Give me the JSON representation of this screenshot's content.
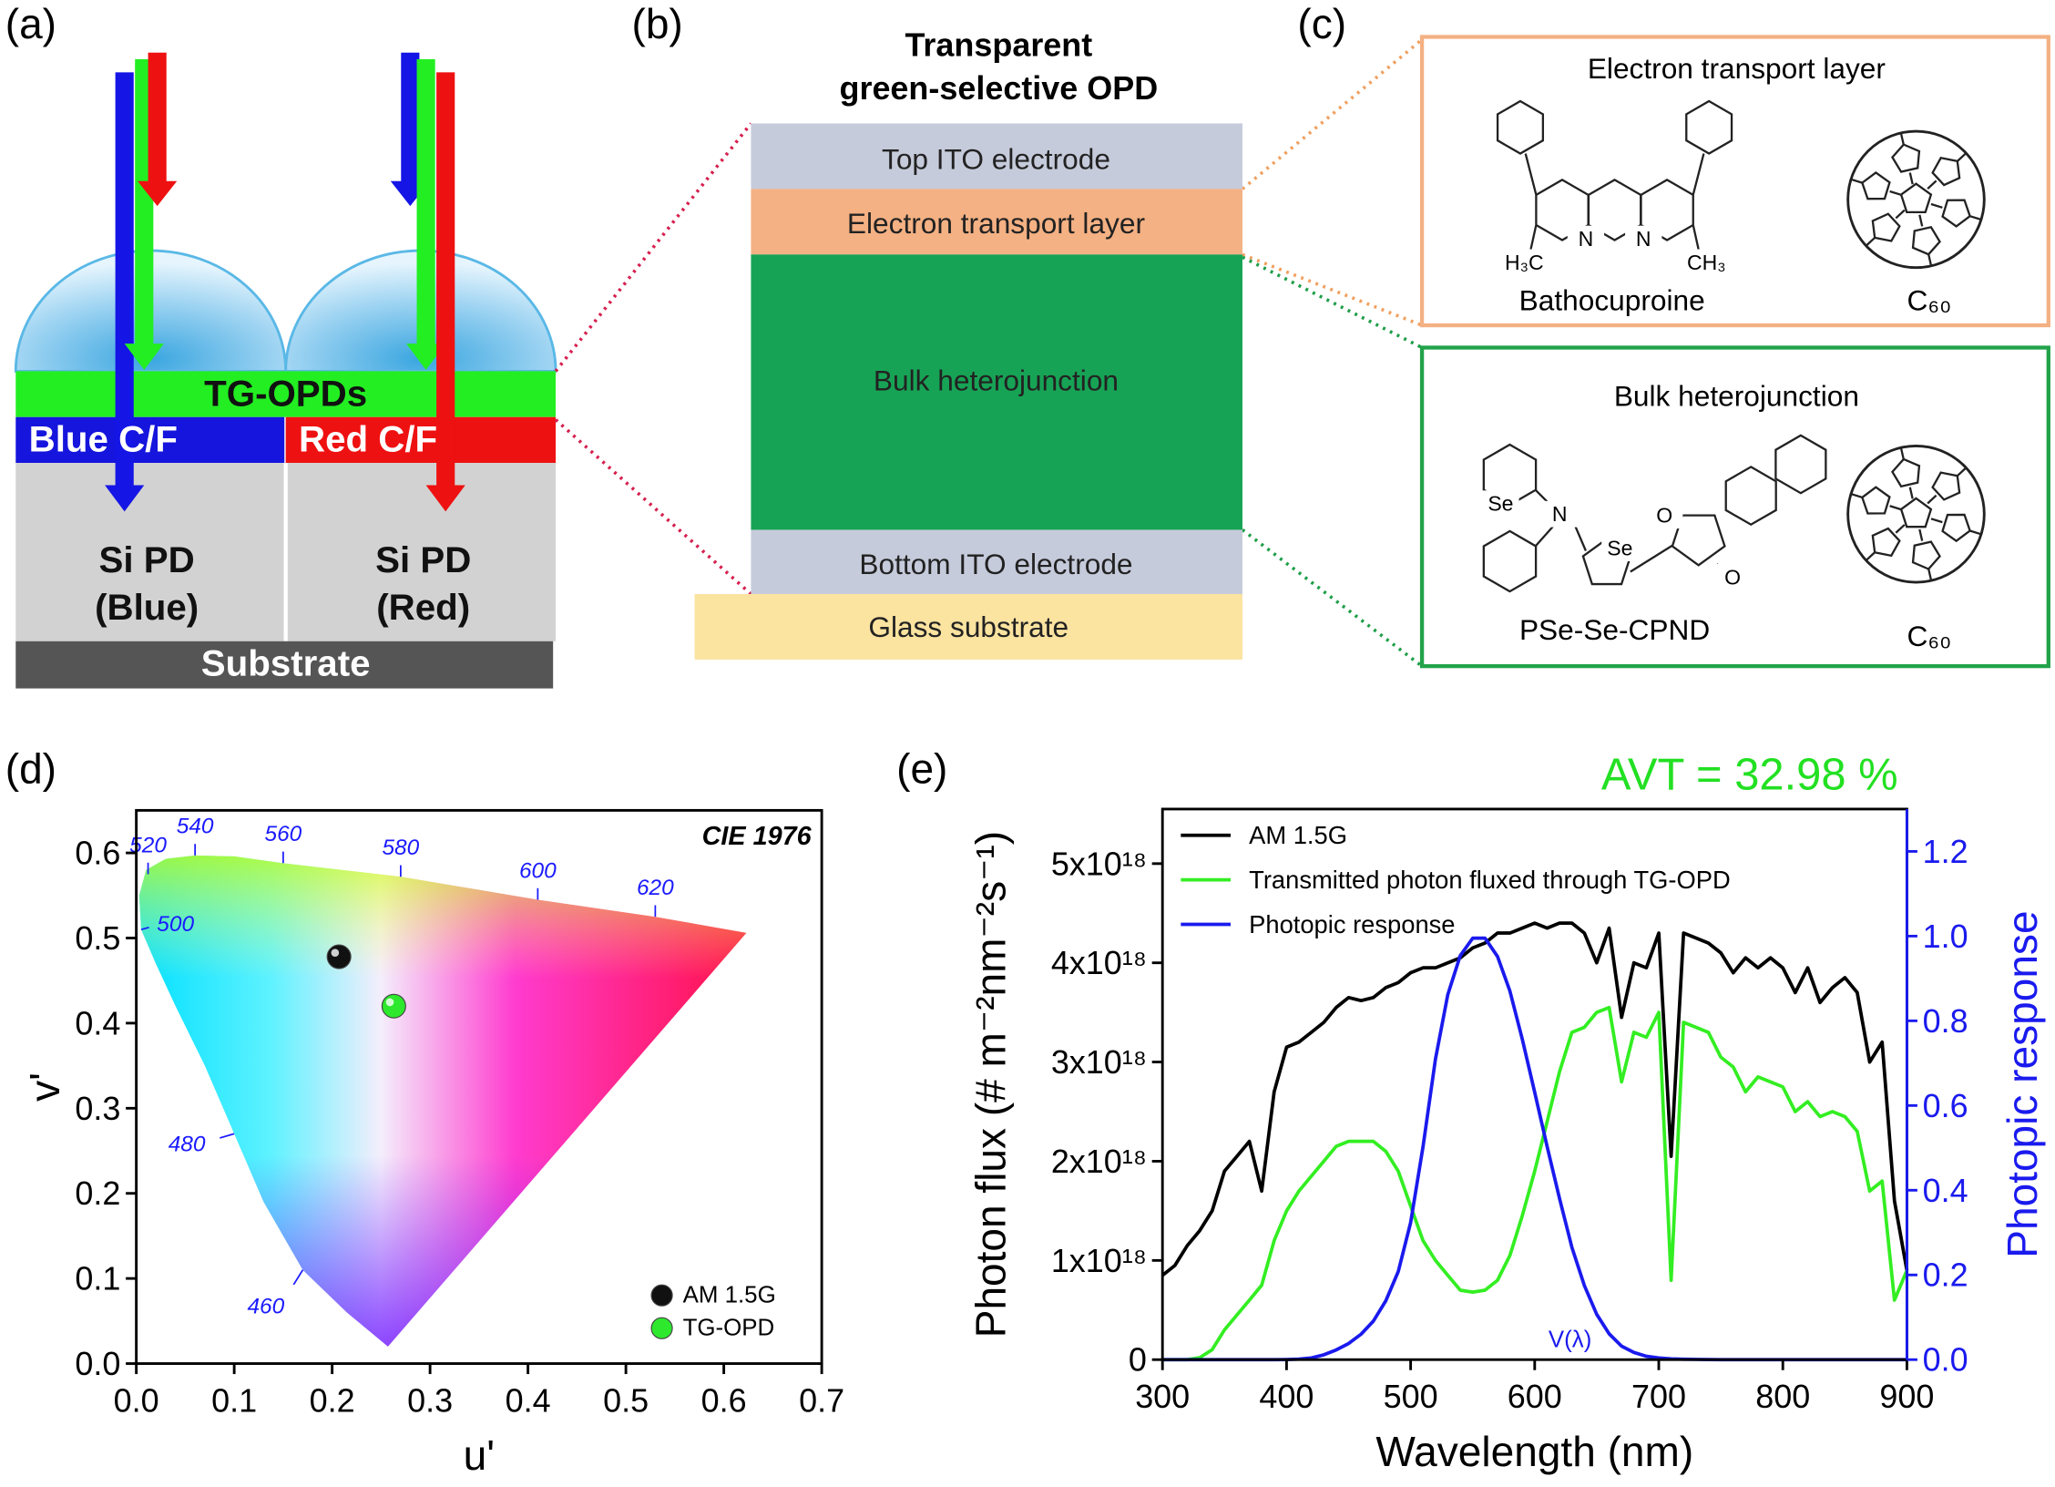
{
  "panels": {
    "a": {
      "label": "(a)",
      "layers": {
        "tg_opds": "TG-OPDs",
        "blue_cf": "Blue C/F",
        "red_cf": "Red C/F",
        "si_pd_blue": [
          "Si PD",
          "(Blue)"
        ],
        "si_pd_red": [
          "Si PD",
          "(Red)"
        ],
        "substrate": "Substrate"
      }
    },
    "b": {
      "label": "(b)",
      "title": [
        "Transparent",
        "green-selective OPD"
      ],
      "layers": [
        "Top ITO electrode",
        "Electron transport layer",
        "Bulk heterojunction",
        "Bottom ITO electrode",
        "Glass substrate"
      ]
    },
    "c": {
      "label": "(c)",
      "etl": {
        "title": "Electron transport layer",
        "molecules": [
          "Bathocuproine",
          "C₆₀"
        ],
        "atoms": [
          "H₃C",
          "N",
          "N",
          "CH₃"
        ]
      },
      "bhj": {
        "title": "Bulk heterojunction",
        "molecules": [
          "PSe-Se-CPND",
          "C₆₀"
        ],
        "atoms": [
          "Se",
          "N",
          "Se",
          "O",
          "O"
        ]
      }
    }
  },
  "chart_data": [
    {
      "type": "scatter",
      "panel_label": "(d)",
      "annotation": "CIE 1976",
      "xlabel": "u'",
      "ylabel": "v'",
      "xlim": [
        0,
        0.7
      ],
      "ylim": [
        0,
        0.65
      ],
      "xticks": [
        {
          "value": 0,
          "label": "0.0"
        },
        0.1,
        0.2,
        0.3,
        0.4,
        0.5,
        0.6,
        0.7
      ],
      "yticks": [
        {
          "value": 0,
          "label": "0.0"
        },
        0.1,
        0.2,
        0.3,
        0.4,
        0.5,
        0.6
      ],
      "locus": {
        "u": [
          0.257,
          0.215,
          0.17,
          0.13,
          0.1,
          0.07,
          0.04,
          0.02,
          0.005,
          0.003,
          0.01,
          0.03,
          0.06,
          0.1,
          0.15,
          0.27,
          0.41,
          0.53,
          0.623
        ],
        "v": [
          0.02,
          0.06,
          0.11,
          0.19,
          0.27,
          0.35,
          0.42,
          0.47,
          0.51,
          0.55,
          0.58,
          0.593,
          0.597,
          0.596,
          0.588,
          0.572,
          0.545,
          0.525,
          0.506
        ]
      },
      "locus_labels": {
        "wavelengths": [
          460,
          480,
          500,
          520,
          540,
          560,
          580,
          600,
          620
        ],
        "u": [
          0.17,
          0.1,
          0.005,
          0.012,
          0.06,
          0.15,
          0.27,
          0.41,
          0.53
        ],
        "v": [
          0.11,
          0.27,
          0.51,
          0.575,
          0.597,
          0.588,
          0.572,
          0.545,
          0.525
        ],
        "color": "#1a1aff"
      },
      "series": [
        {
          "name": "AM 1.5G",
          "color": "#111111",
          "x": [
            0.207
          ],
          "values": [
            0.478
          ]
        },
        {
          "name": "TG-OPD",
          "color": "#2ee82e",
          "x": [
            0.263
          ],
          "values": [
            0.42
          ]
        }
      ],
      "legend": "lower right"
    },
    {
      "type": "line",
      "panel_label": "(e)",
      "annotation": "AVT = 32.98 %",
      "annotation_color": "#22e022",
      "curve_label": "V(λ)",
      "xlabel": "Wavelength (nm)",
      "ylabel": "Photon flux (# m⁻²nm⁻²s⁻¹)",
      "y2label": "Photopic response",
      "y2color": "#1a1aee",
      "xlim": [
        300,
        900
      ],
      "ylim": [
        0,
        5.55e+18
      ],
      "y2lim": [
        0,
        1.3
      ],
      "xticks": [
        300,
        400,
        500,
        600,
        700,
        800,
        900
      ],
      "yticks": [
        0,
        {
          "value": 1e+18,
          "label": "1x10¹⁸"
        },
        {
          "value": 2e+18,
          "label": "2x10¹⁸"
        },
        {
          "value": 3e+18,
          "label": "3x10¹⁸"
        },
        {
          "value": 4e+18,
          "label": "4x10¹⁸"
        },
        {
          "value": 5e+18,
          "label": "5x10¹⁸"
        }
      ],
      "y2ticks": [
        {
          "value": 0,
          "label": "0.0"
        },
        0.2,
        0.4,
        0.6,
        0.8,
        {
          "value": 1,
          "label": "1.0"
        },
        1.2
      ],
      "x": [
        300,
        310,
        320,
        330,
        340,
        350,
        360,
        370,
        380,
        390,
        400,
        410,
        420,
        430,
        440,
        450,
        460,
        470,
        480,
        490,
        500,
        510,
        520,
        530,
        540,
        550,
        560,
        570,
        580,
        590,
        600,
        610,
        620,
        630,
        640,
        650,
        660,
        670,
        680,
        690,
        700,
        710,
        720,
        730,
        740,
        750,
        760,
        770,
        780,
        790,
        800,
        810,
        820,
        830,
        840,
        850,
        860,
        870,
        880,
        890,
        900
      ],
      "series": [
        {
          "name": "AM 1.5G",
          "color": "#000000",
          "values": [
            8.5e+17,
            9.5e+17,
            1.15e+18,
            1.3e+18,
            1.5e+18,
            1.9e+18,
            2.05e+18,
            2.2e+18,
            1.7e+18,
            2.7e+18,
            3.15e+18,
            3.2e+18,
            3.3e+18,
            3.4e+18,
            3.55e+18,
            3.65e+18,
            3.62e+18,
            3.65e+18,
            3.75e+18,
            3.8e+18,
            3.9e+18,
            3.95e+18,
            3.95e+18,
            4e+18,
            4.05e+18,
            4.15e+18,
            4.2e+18,
            4.3e+18,
            4.3e+18,
            4.35e+18,
            4.4e+18,
            4.35e+18,
            4.4e+18,
            4.4e+18,
            4.3e+18,
            4e+18,
            4.35e+18,
            3.45e+18,
            4e+18,
            3.95e+18,
            4.3e+18,
            2.05e+18,
            4.3e+18,
            4.25e+18,
            4.2e+18,
            4.1e+18,
            3.9e+18,
            4.05e+18,
            3.95e+18,
            4.05e+18,
            3.95e+18,
            3.7e+18,
            3.95e+18,
            3.6e+18,
            3.75e+18,
            3.85e+18,
            3.7e+18,
            3e+18,
            3.2e+18,
            1.6e+18,
            9e+17
          ]
        },
        {
          "name": "Transmitted photon fluxed through TG-OPD",
          "color": "#33ee22",
          "values": [
            0,
            0,
            0,
            2e+16,
            1e+17,
            3e+17,
            4.5e+17,
            6e+17,
            7.5e+17,
            1.2e+18,
            1.5e+18,
            1.7e+18,
            1.85e+18,
            2e+18,
            2.15e+18,
            2.2e+18,
            2.2e+18,
            2.2e+18,
            2.1e+18,
            1.9e+18,
            1.55e+18,
            1.2e+18,
            1e+18,
            8.5e+17,
            7e+17,
            6.8e+17,
            7e+17,
            8e+17,
            1.05e+18,
            1.45e+18,
            1.9e+18,
            2.4e+18,
            2.9e+18,
            3.3e+18,
            3.35e+18,
            3.5e+18,
            3.55e+18,
            2.8e+18,
            3.3e+18,
            3.25e+18,
            3.5e+18,
            8e+17,
            3.4e+18,
            3.35e+18,
            3.3e+18,
            3.05e+18,
            2.95e+18,
            2.7e+18,
            2.85e+18,
            2.8e+18,
            2.75e+18,
            2.5e+18,
            2.6e+18,
            2.45e+18,
            2.5e+18,
            2.45e+18,
            2.3e+18,
            1.7e+18,
            1.8e+18,
            6e+17,
            9e+17
          ]
        },
        {
          "name": "Photopic response",
          "color": "#1a1aee",
          "axis": "y2",
          "values": [
            0,
            0,
            0,
            0,
            0,
            0,
            0,
            0,
            0,
            0,
            0.0004,
            0.0012,
            0.004,
            0.0116,
            0.023,
            0.038,
            0.06,
            0.091,
            0.139,
            0.208,
            0.323,
            0.503,
            0.71,
            0.862,
            0.954,
            0.995,
            0.995,
            0.952,
            0.87,
            0.757,
            0.631,
            0.503,
            0.381,
            0.265,
            0.175,
            0.107,
            0.061,
            0.032,
            0.017,
            0.0082,
            0.0041,
            0.002,
            0.001,
            0.0005,
            0.0002,
            0.0001,
            0,
            0,
            0,
            0,
            0,
            0,
            0,
            0,
            0,
            0,
            0,
            0,
            0,
            0,
            0
          ]
        }
      ],
      "legend": "upper left"
    }
  ]
}
